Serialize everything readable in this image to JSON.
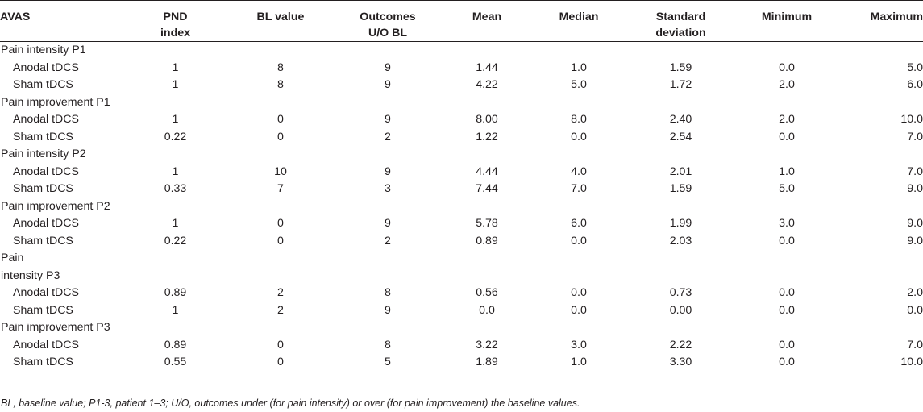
{
  "table": {
    "headers": [
      "AVAS",
      "PND index",
      "BL value",
      "Outcomes U/O BL",
      "Mean",
      "Median",
      "Standard deviation",
      "Minimum",
      "Maximum"
    ],
    "header_lines": [
      [
        "AVAS"
      ],
      [
        "PND",
        "index"
      ],
      [
        "BL value"
      ],
      [
        "Outcomes",
        "U/O BL"
      ],
      [
        "Mean"
      ],
      [
        "Median"
      ],
      [
        "Standard",
        "deviation"
      ],
      [
        "Minimum"
      ],
      [
        "Maximum"
      ]
    ],
    "groups": [
      {
        "label": "Pain intensity P1",
        "rows": [
          [
            "Anodal tDCS",
            "1",
            "8",
            "9",
            "1.44",
            "1.0",
            "1.59",
            "0.0",
            "5.0"
          ],
          [
            "Sham tDCS",
            "1",
            "8",
            "9",
            "4.22",
            "5.0",
            "1.72",
            "2.0",
            "6.0"
          ]
        ]
      },
      {
        "label": "Pain improvement P1",
        "rows": [
          [
            "Anodal tDCS",
            "1",
            "0",
            "9",
            "8.00",
            "8.0",
            "2.40",
            "2.0",
            "10.0"
          ],
          [
            "Sham tDCS",
            "0.22",
            "0",
            "2",
            "1.22",
            "0.0",
            "2.54",
            "0.0",
            "7.0"
          ]
        ]
      },
      {
        "label": "Pain intensity P2",
        "rows": [
          [
            "Anodal tDCS",
            "1",
            "10",
            "9",
            "4.44",
            "4.0",
            "2.01",
            "1.0",
            "7.0"
          ],
          [
            "Sham tDCS",
            "0.33",
            "7",
            "3",
            "7.44",
            "7.0",
            "1.59",
            "5.0",
            "9.0"
          ]
        ]
      },
      {
        "label": "Pain improvement P2",
        "rows": [
          [
            "Anodal tDCS",
            "1",
            "0",
            "9",
            "5.78",
            "6.0",
            "1.99",
            "3.0",
            "9.0"
          ],
          [
            "Sham tDCS",
            "0.22",
            "0",
            "2",
            "0.89",
            "0.0",
            "2.03",
            "0.0",
            "9.0"
          ]
        ]
      },
      {
        "label": "Pain intensity P3",
        "label_lines": [
          "Pain",
          "intensity P3"
        ],
        "rows": [
          [
            "Anodal tDCS",
            "0.89",
            "2",
            "8",
            "0.56",
            "0.0",
            "0.73",
            "0.0",
            "2.0"
          ],
          [
            "Sham tDCS",
            "1",
            "2",
            "9",
            "0.0",
            "0.0",
            "0.00",
            "0.0",
            "0.0"
          ]
        ]
      },
      {
        "label": "Pain improvement P3",
        "rows": [
          [
            "Anodal tDCS",
            "0.89",
            "0",
            "8",
            "3.22",
            "3.0",
            "2.22",
            "0.0",
            "7.0"
          ],
          [
            "Sham tDCS",
            "0.55",
            "0",
            "5",
            "1.89",
            "1.0",
            "3.30",
            "0.0",
            "10.0"
          ]
        ]
      }
    ]
  },
  "footnote": "BL, baseline value; P1-3, patient 1–3; U/O, outcomes under (for pain intensity) or over (for pain improvement) the baseline values."
}
